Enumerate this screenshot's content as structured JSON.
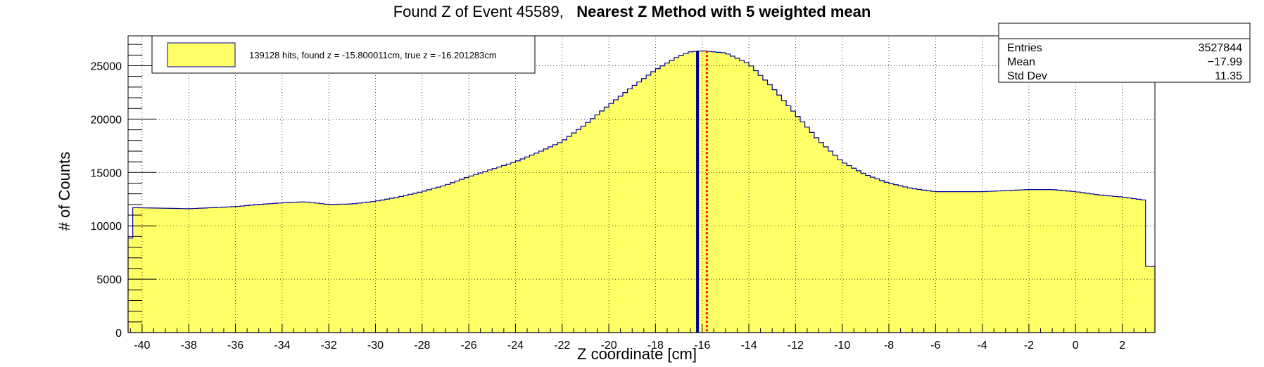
{
  "title_prefix": "Found Z of Event 45589,",
  "title_bold": "Nearest Z Method with 5 weighted mean",
  "legend": {
    "label": "139128 hits, found z = -15.800011cm, true z = -16.201283cm",
    "fill_color": "#ffff66",
    "border_color": "#000099"
  },
  "stats": {
    "rows": [
      {
        "name": "Entries",
        "value": "3527844"
      },
      {
        "name": "Mean",
        "value": "−17.99"
      },
      {
        "name": "Std Dev",
        "value": "11.35"
      }
    ]
  },
  "chart_data": {
    "type": "histogram",
    "xlabel": "Z coordinate [cm]",
    "ylabel": "# of Counts",
    "xlim": [
      -40.6,
      3.4
    ],
    "ylim": [
      0,
      27800
    ],
    "x_ticks": [
      -40,
      -38,
      -36,
      -34,
      -32,
      -30,
      -28,
      -26,
      -24,
      -22,
      -20,
      -18,
      -16,
      -14,
      -12,
      -10,
      -8,
      -6,
      -4,
      -2,
      0,
      2
    ],
    "y_ticks": [
      0,
      5000,
      10000,
      15000,
      20000,
      25000
    ],
    "grid": true,
    "fill_color": "#ffff66",
    "line_color": "#000099",
    "histogram_points": [
      {
        "x": -40.6,
        "y": 6000
      },
      {
        "x": -40.4,
        "y": 11700
      },
      {
        "x": -39.0,
        "y": 11650
      },
      {
        "x": -38.0,
        "y": 11600
      },
      {
        "x": -36.0,
        "y": 11800
      },
      {
        "x": -35.0,
        "y": 12000
      },
      {
        "x": -34.0,
        "y": 12150
      },
      {
        "x": -33.0,
        "y": 12250
      },
      {
        "x": -32.0,
        "y": 12000
      },
      {
        "x": -31.0,
        "y": 12050
      },
      {
        "x": -30.0,
        "y": 12300
      },
      {
        "x": -29.0,
        "y": 12700
      },
      {
        "x": -28.0,
        "y": 13200
      },
      {
        "x": -27.0,
        "y": 13800
      },
      {
        "x": -26.0,
        "y": 14600
      },
      {
        "x": -25.0,
        "y": 15300
      },
      {
        "x": -24.0,
        "y": 16000
      },
      {
        "x": -23.0,
        "y": 16900
      },
      {
        "x": -22.0,
        "y": 17900
      },
      {
        "x": -21.0,
        "y": 19500
      },
      {
        "x": -20.0,
        "y": 21300
      },
      {
        "x": -19.0,
        "y": 23000
      },
      {
        "x": -18.0,
        "y": 24600
      },
      {
        "x": -17.0,
        "y": 25900
      },
      {
        "x": -16.5,
        "y": 26300
      },
      {
        "x": -16.0,
        "y": 26400
      },
      {
        "x": -15.0,
        "y": 26200
      },
      {
        "x": -14.0,
        "y": 25200
      },
      {
        "x": -13.0,
        "y": 23000
      },
      {
        "x": -12.0,
        "y": 20500
      },
      {
        "x": -11.0,
        "y": 18000
      },
      {
        "x": -10.0,
        "y": 16000
      },
      {
        "x": -9.0,
        "y": 14800
      },
      {
        "x": -8.0,
        "y": 14000
      },
      {
        "x": -7.0,
        "y": 13500
      },
      {
        "x": -6.0,
        "y": 13200
      },
      {
        "x": -5.0,
        "y": 13200
      },
      {
        "x": -4.0,
        "y": 13200
      },
      {
        "x": -3.0,
        "y": 13300
      },
      {
        "x": -2.0,
        "y": 13400
      },
      {
        "x": -1.0,
        "y": 13400
      },
      {
        "x": 0.0,
        "y": 13200
      },
      {
        "x": 1.0,
        "y": 12900
      },
      {
        "x": 2.0,
        "y": 12700
      },
      {
        "x": 3.0,
        "y": 12400
      },
      {
        "x": 3.1,
        "y": 6200
      },
      {
        "x": 3.4,
        "y": 6200
      }
    ],
    "bin_width": 0.2,
    "found_z": -15.800011,
    "true_z": -16.201283,
    "found_z_color": "#ff0000",
    "true_z_color": "#000099",
    "true_z_style": "solid",
    "found_z_style": "dotted",
    "peak_top": 26400
  }
}
